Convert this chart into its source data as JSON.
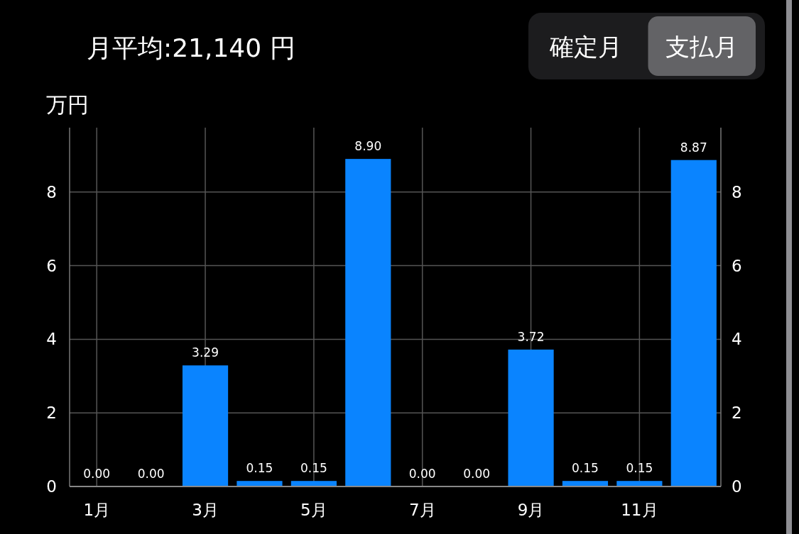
{
  "chart_data": {
    "type": "bar",
    "title": "月平均:21,140 円",
    "ylabel": "万円",
    "annotations": [
      "確定月",
      "支払月"
    ],
    "categories": [
      "1月",
      null,
      "3月",
      null,
      "5月",
      null,
      "7月",
      null,
      "9月",
      null,
      "11月",
      null
    ],
    "values": [
      0,
      0,
      3.29,
      0.15,
      0.15,
      8.9,
      0,
      0,
      3.72,
      0.15,
      0.15,
      8.87
    ],
    "value_labels": [
      "0.00",
      "0.00",
      "3.29",
      "0.15",
      "0.15",
      "8.90",
      "0.00",
      "0.00",
      "3.72",
      "0.15",
      "0.15",
      "8.87"
    ],
    "color": "#0a84ff",
    "ylim": [
      0,
      9.75
    ],
    "yticks": [
      0,
      2,
      4,
      6,
      8
    ],
    "y2lim": [
      0,
      9.75
    ],
    "y2ticks": [
      0,
      2,
      4,
      6,
      8
    ],
    "grid": true
  }
}
